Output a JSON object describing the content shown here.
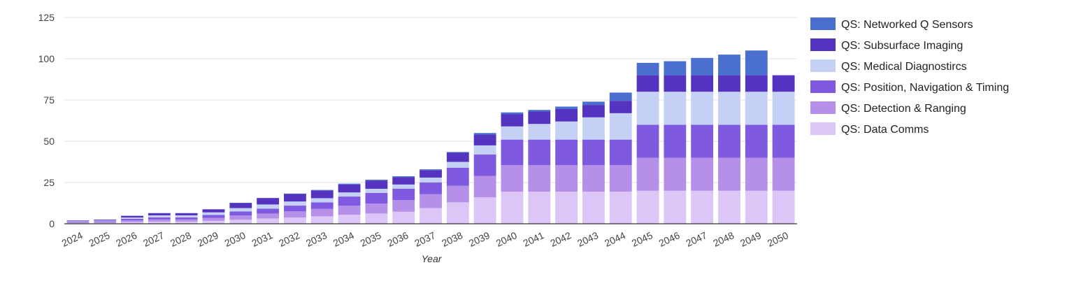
{
  "chart_data": {
    "type": "bar",
    "stacked": true,
    "title": "",
    "xlabel": "Year",
    "ylabel": "",
    "ylim": [
      0,
      125
    ],
    "yticks": [
      0,
      25,
      50,
      75,
      100,
      125
    ],
    "grid": true,
    "legend_position": "right",
    "categories": [
      "2024",
      "2025",
      "2026",
      "2027",
      "2028",
      "2029",
      "2030",
      "2031",
      "2032",
      "2033",
      "2034",
      "2035",
      "2036",
      "2037",
      "2038",
      "2039",
      "2040",
      "2041",
      "2042",
      "2043",
      "2044",
      "2045",
      "2046",
      "2047",
      "2048",
      "2049",
      "2050"
    ],
    "series": [
      {
        "name": "QS: Data Comms",
        "color": "#dcc5f7",
        "values": [
          0.4,
          0.5,
          1,
          1.3,
          1.3,
          1.8,
          2.5,
          3.2,
          3.8,
          4.5,
          5.5,
          6.2,
          7.3,
          9.5,
          13,
          16,
          19.5,
          19.5,
          19.5,
          19.5,
          19.5,
          20,
          20,
          20,
          20,
          20,
          20
        ]
      },
      {
        "name": "QS: Detection & Ranging",
        "color": "#b58fe8",
        "values": [
          0.4,
          0.5,
          1,
          1.3,
          1.3,
          1.8,
          2.5,
          3,
          3.7,
          4.5,
          5.5,
          6,
          7,
          8.5,
          10,
          13,
          16,
          16,
          16,
          16,
          16,
          20,
          20,
          20,
          20,
          20,
          20
        ]
      },
      {
        "name": "QS: Position, Navigation & Timing",
        "color": "#7f5ae0",
        "values": [
          0.4,
          0.5,
          1,
          1.3,
          1.3,
          1.8,
          2.5,
          3,
          3.5,
          4,
          5.5,
          6.5,
          7,
          7,
          11,
          13,
          15.5,
          15.5,
          15.5,
          15.5,
          15.5,
          20,
          20,
          20,
          20,
          20,
          20
        ]
      },
      {
        "name": "QS: Medical Diagnostircs",
        "color": "#c5d0f5",
        "values": [
          0.4,
          0.5,
          0.8,
          1.2,
          1.2,
          1.5,
          2,
          2.5,
          2.5,
          2.5,
          2.5,
          2.5,
          2.5,
          3,
          3.5,
          5.5,
          8,
          9.5,
          11,
          13.5,
          16,
          20,
          20,
          20,
          20,
          20,
          20
        ]
      },
      {
        "name": "QS: Subsurface Imaging",
        "color": "#5433c0",
        "values": [
          0.4,
          0.5,
          1,
          1.3,
          1.3,
          1.8,
          3,
          3.8,
          4.5,
          4.7,
          4.8,
          5,
          4.5,
          4.5,
          5.5,
          6.5,
          7.5,
          7.5,
          7.5,
          7.5,
          7.5,
          10,
          10,
          10,
          10,
          10,
          10
        ]
      },
      {
        "name": "QS: Networked Q Sensors",
        "color": "#4a6fcf",
        "values": [
          0,
          0,
          0.1,
          0.1,
          0.1,
          0.1,
          0.2,
          0.2,
          0.3,
          0.3,
          0.5,
          0.5,
          0.5,
          0.5,
          0.5,
          1,
          1,
          1,
          1.5,
          2,
          5,
          7.5,
          8.5,
          10.5,
          12.5,
          15,
          0
        ]
      }
    ]
  }
}
